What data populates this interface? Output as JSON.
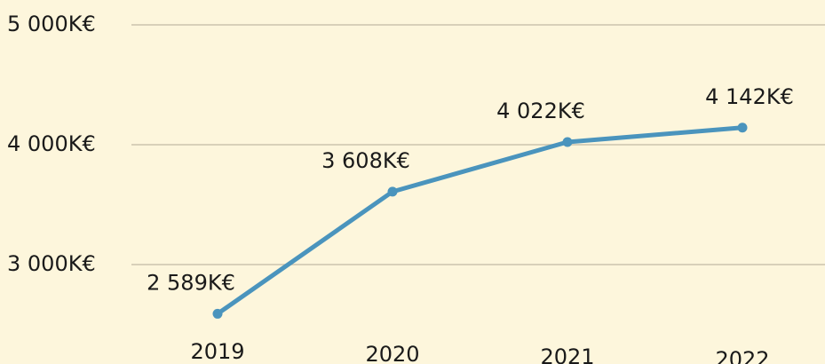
{
  "chart_data": {
    "type": "line",
    "categories": [
      "2019",
      "2020",
      "2021",
      "2022"
    ],
    "series": [
      {
        "color": "#4a94bd",
        "values": [
          2589,
          3608,
          4022,
          4142
        ],
        "value_labels": [
          "2 589K€",
          "3 608K€",
          "4 022K€",
          "4 142K€"
        ]
      }
    ],
    "ylim": [
      2170,
      5207
    ],
    "yticks": [
      {
        "value": 3000,
        "label": "3 000K€"
      },
      {
        "value": 4000,
        "label": "4 000K€"
      },
      {
        "value": 5000,
        "label": "5 000K€"
      }
    ],
    "grid": true
  }
}
